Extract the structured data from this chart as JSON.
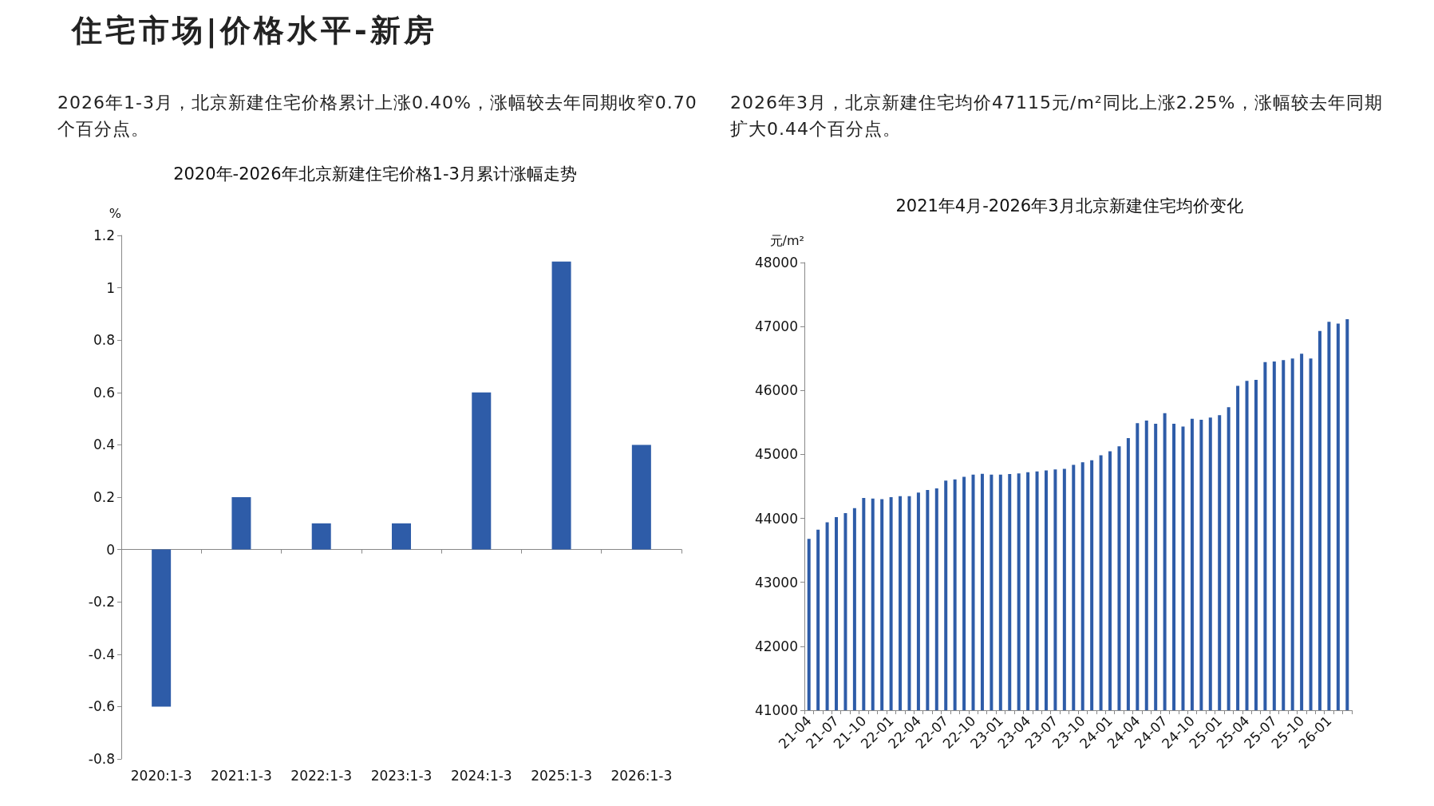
{
  "chart_data": [
    {
      "type": "bar",
      "title": "2020年-2026年北京新建住宅价格1-3月累计涨幅走势",
      "ylabel": "%",
      "annotations": [
        "住宅市场|价格水平-新房",
        "2026年1-3月，北京新建住宅价格累计上涨0.40%，涨幅较去年同期收窄0.70个百分点。"
      ],
      "categories": [
        "2020:1-3",
        "2021:1-3",
        "2022:1-3",
        "2023:1-3",
        "2024:1-3",
        "2025:1-3",
        "2026:1-3"
      ],
      "values": [
        -0.6,
        0.2,
        0.1,
        0.1,
        0.6,
        1.1,
        0.4
      ],
      "color": "#2e5ca8",
      "ylim": [
        -0.8,
        1.2
      ],
      "yticks": [
        -0.8,
        -0.6,
        -0.4,
        -0.2,
        0,
        0.2,
        0.4,
        0.6,
        0.8,
        1,
        1.2
      ]
    },
    {
      "type": "bar",
      "title": "2021年4月-2026年3月北京新建住宅均价变化",
      "ylabel": "元/m²",
      "annotations": [
        "2026年3月，北京新建住宅均价47115元/m²同比上涨2.25%，涨幅较去年同期扩大0.44个百分点。"
      ],
      "categories": [
        "21-04",
        null,
        null,
        "21-07",
        null,
        null,
        "21-10",
        null,
        null,
        "22-01",
        null,
        null,
        "22-04",
        null,
        null,
        "22-07",
        null,
        null,
        "22-10",
        null,
        null,
        "23-01",
        null,
        null,
        "23-04",
        null,
        null,
        "23-07",
        null,
        null,
        "23-10",
        null,
        null,
        "24-01",
        null,
        null,
        "24-04",
        null,
        null,
        "24-07",
        null,
        null,
        "24-10",
        null,
        null,
        "25-01",
        null,
        null,
        "25-04",
        null,
        null,
        "25-07",
        null,
        null,
        "25-10",
        null,
        null,
        "26-01",
        null,
        null
      ],
      "values": [
        43680,
        43824,
        43938,
        44020,
        44083,
        44160,
        44320,
        44310,
        44300,
        44331,
        44346,
        44346,
        44403,
        44445,
        44470,
        44589,
        44610,
        44650,
        44683,
        44698,
        44683,
        44683,
        44693,
        44703,
        44720,
        44734,
        44750,
        44765,
        44776,
        44838,
        44879,
        44910,
        44988,
        45050,
        45127,
        45256,
        45489,
        45530,
        45479,
        45644,
        45479,
        45437,
        45556,
        45541,
        45577,
        45613,
        45737,
        46073,
        46150,
        46165,
        46444,
        46454,
        46475,
        46500,
        46573,
        46500,
        46930,
        47075,
        47044,
        47115
      ],
      "color": "#2e5ca8",
      "ylim": [
        41000,
        48000
      ],
      "yticks": [
        41000,
        42000,
        43000,
        44000,
        45000,
        46000,
        47000,
        48000
      ]
    }
  ]
}
